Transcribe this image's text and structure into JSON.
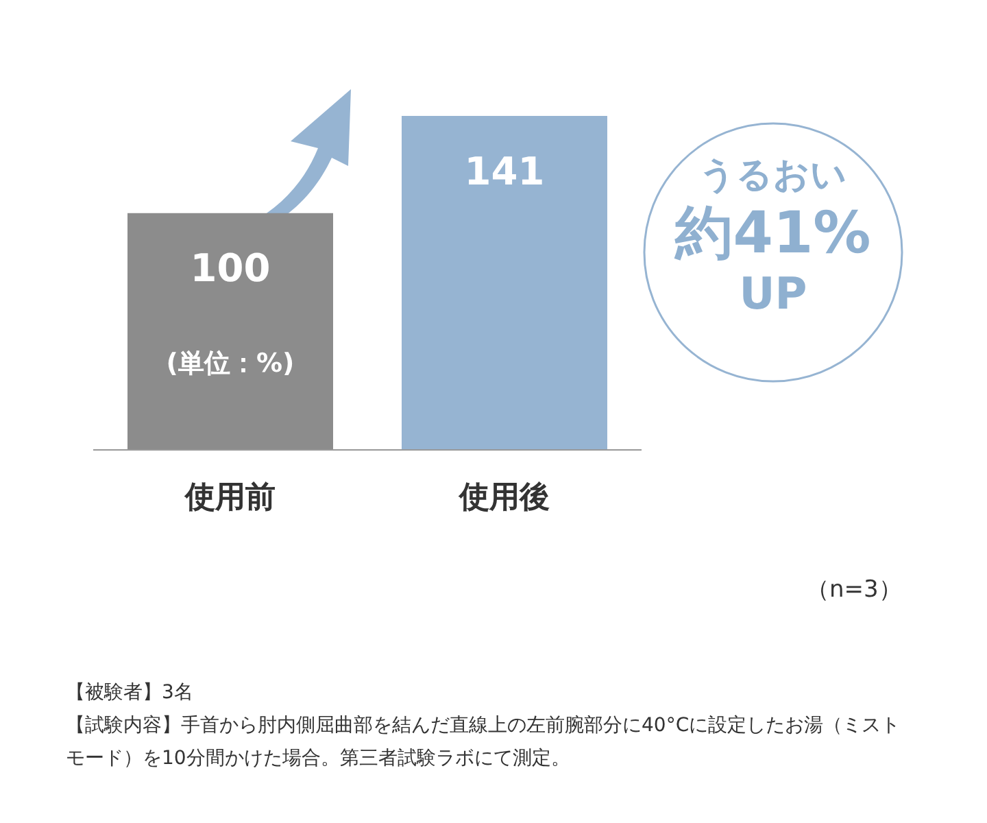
{
  "chart_data": {
    "type": "bar",
    "categories": [
      "使用前",
      "使用後"
    ],
    "values": [
      100,
      141
    ],
    "colors": [
      "#8c8c8c",
      "#96b4d2"
    ],
    "data_labels": true,
    "annotations": [
      "(単位：%)",
      "うるおい",
      "約41%",
      "UP",
      "（n=3）",
      "【被験者】3名",
      "【試験内容】手首から肘内側屈曲部を結んだ直線上の左前腕部分に40°Cに設定したお湯（ミストモード）を10分間かけた場合。第三者試験ラボにて測定。"
    ]
  }
}
